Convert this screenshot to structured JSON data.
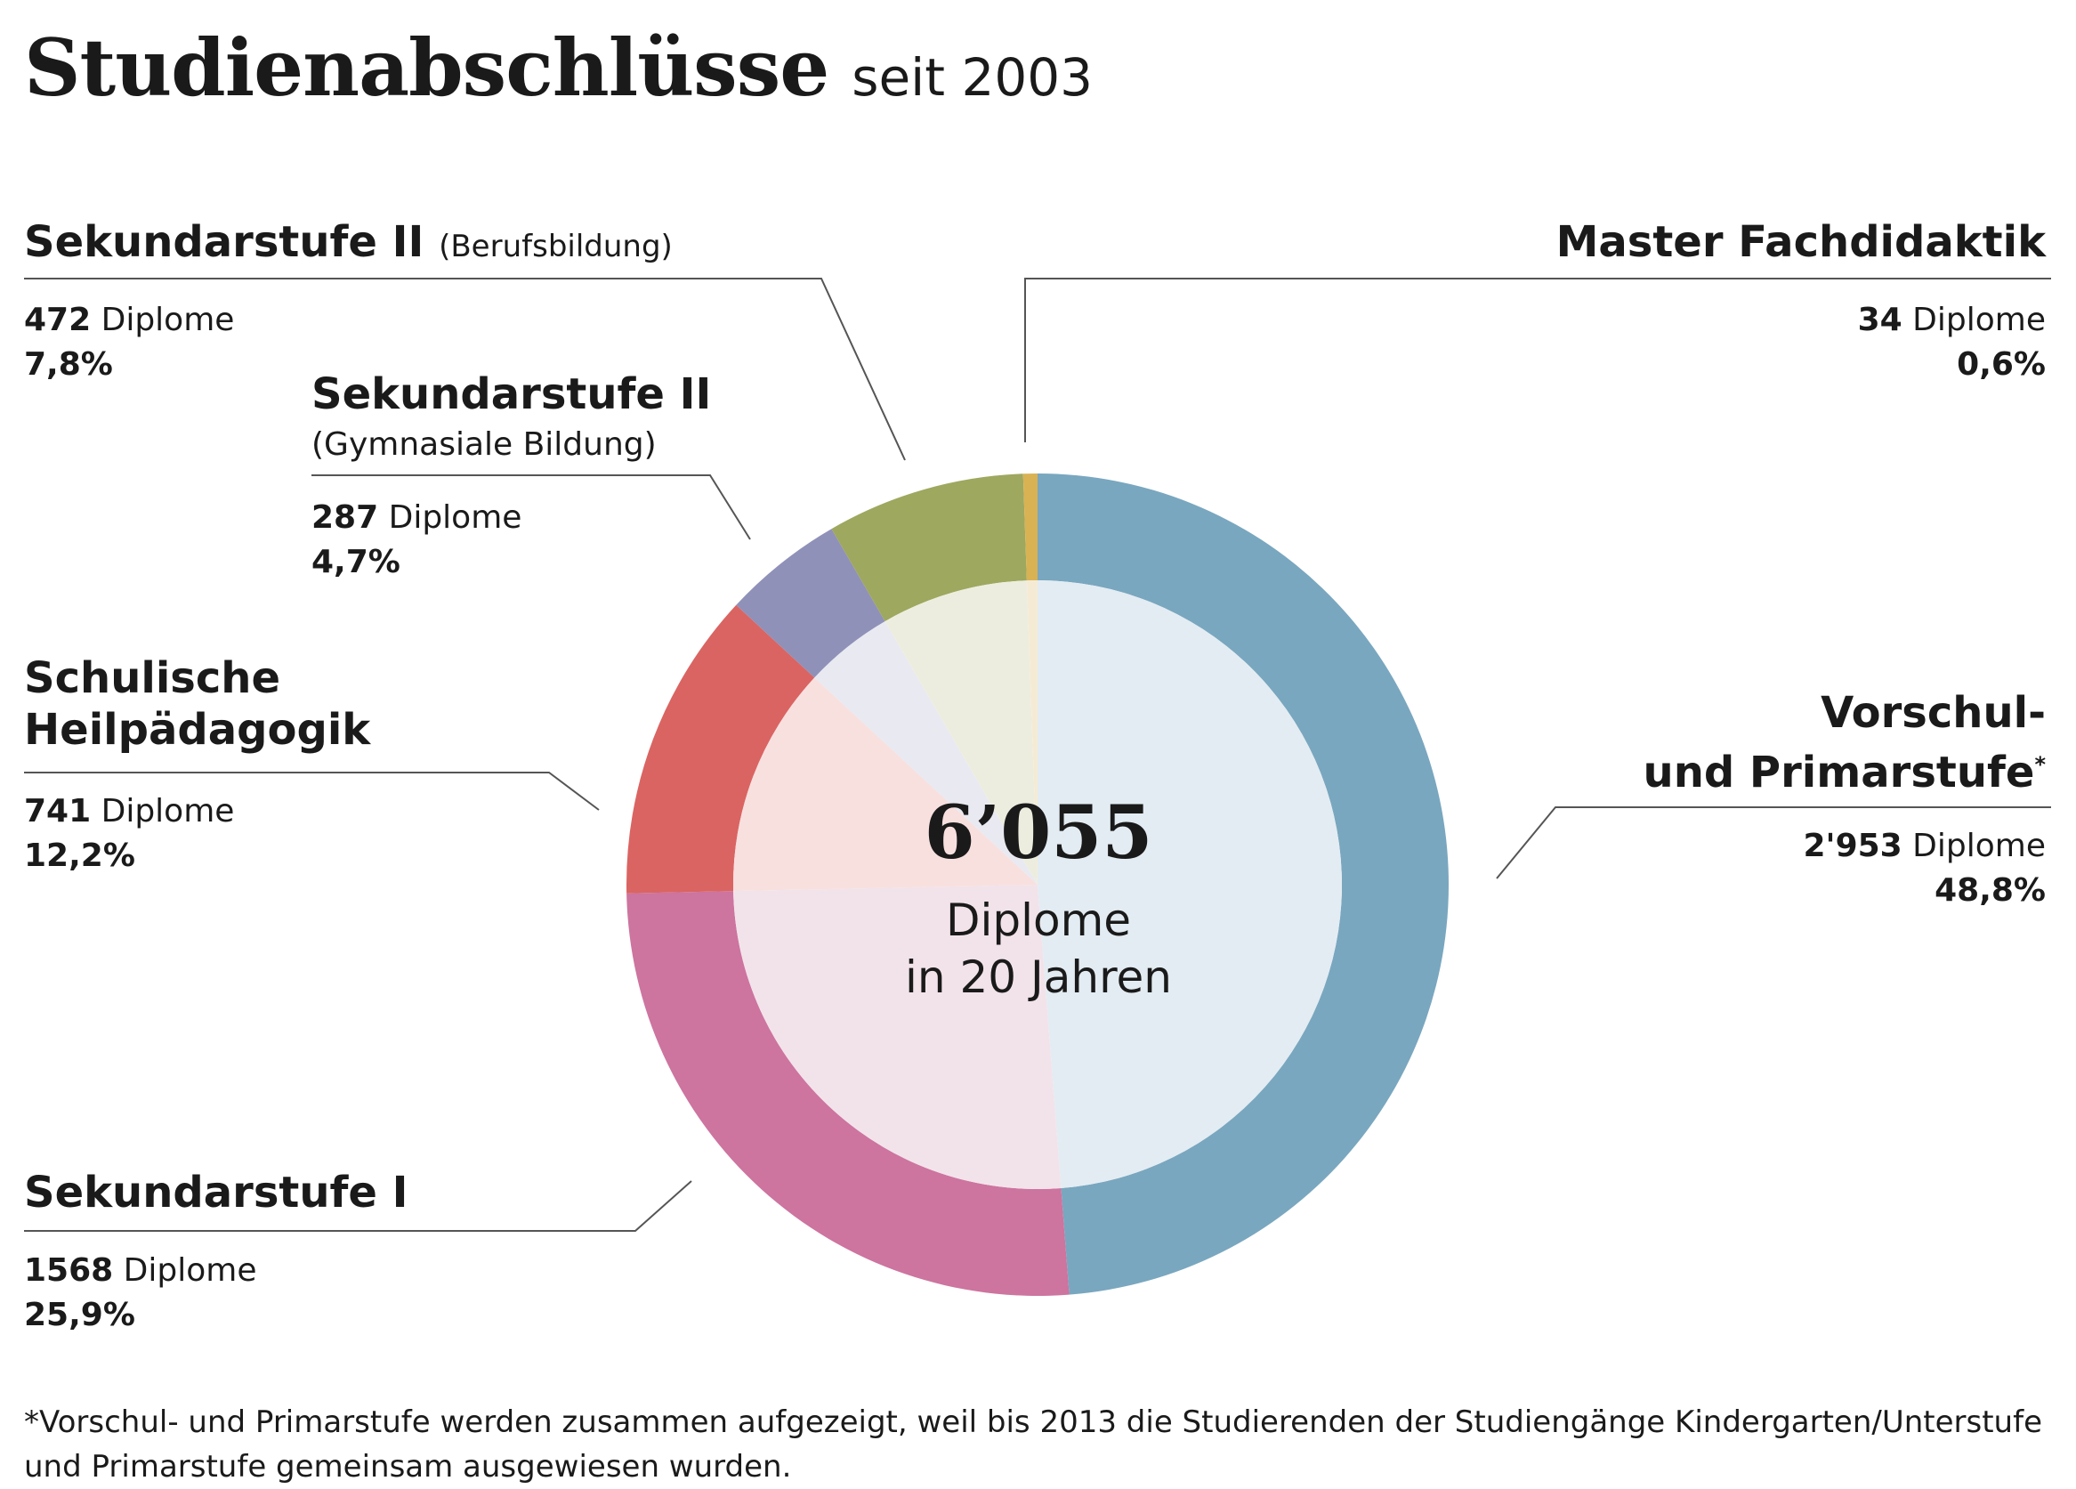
{
  "header": {
    "title": "Studienabschlüsse",
    "subtitle": "seit 2003"
  },
  "center": {
    "total": "6’055",
    "line1": "Diplome",
    "line2": "in 20 Jahren"
  },
  "segments": {
    "vorschul": {
      "label1": "Vorschul-",
      "label2": "und Primarstufe",
      "marker": "*",
      "count": "2'953",
      "unit": "Diplome",
      "percent": "48,8%"
    },
    "sek1": {
      "label": "Sekundarstufe I",
      "count": "1568",
      "unit": "Diplome",
      "percent": "25,9%"
    },
    "heil": {
      "label1": "Schulische",
      "label2": "Heilpädagogik",
      "count": "741",
      "unit": "Diplome",
      "percent": "12,2%"
    },
    "gymn": {
      "label": "Sekundarstufe II",
      "sublabel": "(Gymnasiale Bildung)",
      "count": "287",
      "unit": "Diplome",
      "percent": "4,7%"
    },
    "beruf": {
      "label": "Sekundarstufe II",
      "sublabel": "(Berufsbildung)",
      "count": "472",
      "unit": "Diplome",
      "percent": "7,8%"
    },
    "master": {
      "label": "Master Fachdidaktik",
      "count": "34",
      "unit": "Diplome",
      "percent": "0,6%"
    }
  },
  "footnote": "*Vorschul- und Primarstufe werden zusammen aufgezeigt, weil bis 2013 die Studierenden der Studiengänge Kindergarten/Unterstufe und Primarstufe gemeinsam ausgewiesen wurden.",
  "chart_data": {
    "type": "pie",
    "variant": "donut",
    "title": "Studienabschlüsse",
    "subtitle": "seit 2003",
    "total": 6055,
    "categories": [
      "Vorschul- und Primarstufe",
      "Sekundarstufe I",
      "Schulische Heilpädagogik",
      "Sekundarstufe II (Gymnasiale Bildung)",
      "Sekundarstufe II (Berufsbildung)",
      "Master Fachdidaktik"
    ],
    "values": [
      2953,
      1568,
      741,
      287,
      472,
      34
    ],
    "percents": [
      48.8,
      25.9,
      12.2,
      4.7,
      7.8,
      0.6
    ],
    "colors": [
      "#79a7bf",
      "#cd749f",
      "#da6462",
      "#8f91b9",
      "#9ea85f",
      "#d9b253"
    ],
    "inner_colors": [
      "#e3ecf2",
      "#f2e3ea",
      "#f8e0df",
      "#e9e9f1",
      "#ededdf",
      "#f5ebd5"
    ]
  }
}
